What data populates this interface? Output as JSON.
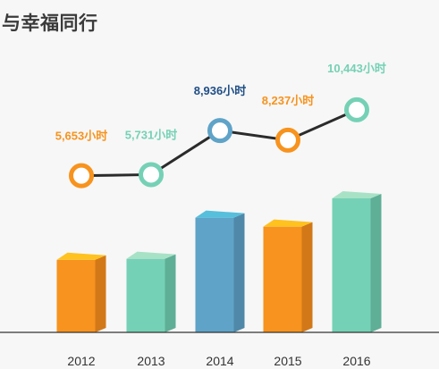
{
  "page": {
    "title": "与幸福同行"
  },
  "chart_data": {
    "type": "bar",
    "categories": [
      "2012",
      "2013",
      "2014",
      "2015",
      "2016"
    ],
    "series": [
      {
        "values": [
          5653,
          5731,
          8936,
          8237,
          10443
        ]
      }
    ],
    "data_labels": [
      "5,653小时",
      "5,731小时",
      "8,936小时",
      "8,237小时",
      "10,443小时"
    ],
    "overlay": "line",
    "colors": {
      "bars_front": [
        "#f7931e",
        "#75d1b5",
        "#5fa3c8",
        "#f7931e",
        "#75d1b5"
      ],
      "bars_side": [
        "#d27818",
        "#5fae96",
        "#4f88a8",
        "#d27818",
        "#5fae96"
      ],
      "bars_top": [
        "#ffc21f",
        "#a8e2c6",
        "#56bfdc",
        "#ffc21f",
        "#a8e2c6"
      ],
      "labels": [
        "#f7931e",
        "#75d1b5",
        "#1f4e86",
        "#f7931e",
        "#75d1b5"
      ],
      "line": "#2b2b2b",
      "axis": "#333333"
    }
  }
}
